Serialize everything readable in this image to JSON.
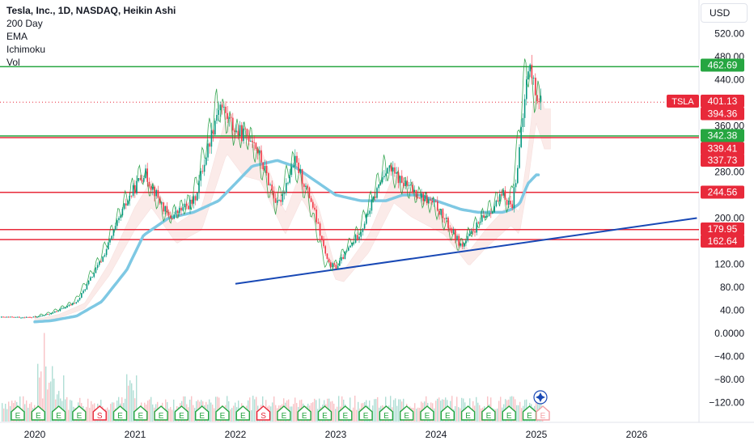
{
  "header": {
    "symbol_title": "Tesla, Inc., 1D, NASDAQ, Heikin Ashi",
    "indicators": [
      "200 Day",
      "EMA",
      "Ichimoku",
      "Vol"
    ],
    "currency": "USD"
  },
  "price_axis": {
    "ticks": [
      "520.00",
      "480.00",
      "440.00",
      "360.00",
      "280.00",
      "200.00",
      "120.00",
      "80.00",
      "40.00",
      "0.0000",
      "−40.00",
      "−80.00",
      "−120.00"
    ],
    "tick_values": [
      520,
      480,
      440,
      360,
      280,
      200,
      120,
      80,
      40,
      0,
      -40,
      -80,
      -120
    ]
  },
  "time_axis": {
    "labels": [
      "2020",
      "2021",
      "2022",
      "2023",
      "2024",
      "2025",
      "2026"
    ]
  },
  "price_labels": [
    {
      "text": "462.69",
      "value": 462.69,
      "kind": "green"
    },
    {
      "text": "401.13",
      "value": 401.13,
      "kind": "red",
      "symbol": "TSLA"
    },
    {
      "text": "394.36",
      "value": 394.36,
      "kind": "red"
    },
    {
      "text": "342.38",
      "value": 342.38,
      "kind": "green"
    },
    {
      "text": "339.41",
      "value": 339.41,
      "kind": "red"
    },
    {
      "text": "337.73",
      "value": 337.73,
      "kind": "red"
    },
    {
      "text": "244.56",
      "value": 244.56,
      "kind": "red"
    },
    {
      "text": "179.95",
      "value": 179.95,
      "kind": "red"
    },
    {
      "text": "162.64",
      "value": 162.64,
      "kind": "red"
    }
  ],
  "horizontal_lines": [
    {
      "value": 462.69,
      "color": "#26a641"
    },
    {
      "value": 342.38,
      "color": "#26a641"
    },
    {
      "value": 339.41,
      "color": "#e8293a"
    },
    {
      "value": 244.56,
      "color": "#e8293a"
    },
    {
      "value": 179.95,
      "color": "#e8293a"
    },
    {
      "value": 162.64,
      "color": "#e8293a"
    }
  ],
  "trendline": {
    "start": {
      "date": "2022.0",
      "value": 86
    },
    "end": {
      "date": "2026.6",
      "value": 200
    },
    "color": "#1848b5"
  },
  "last_price_line": {
    "value": 401.13,
    "color": "#e8293a"
  },
  "events": [
    "E",
    "E",
    "E",
    "E",
    "S",
    "E",
    "E",
    "E",
    "E",
    "E",
    "E",
    "E",
    "S",
    "E",
    "E",
    "E",
    "E",
    "E",
    "E",
    "E",
    "E",
    "E",
    "E",
    "E",
    "E",
    "E"
  ],
  "colors": {
    "up": "#089981",
    "down": "#f23645",
    "ma": "#7ec8e3",
    "trend": "#1848b5",
    "green_line": "#26a641",
    "red_line": "#e8293a"
  },
  "chart_data": {
    "type": "line",
    "title": "Tesla, Inc., 1D, NASDAQ, Heikin Ashi",
    "x": [
      "2020-01",
      "2020-03",
      "2020-06",
      "2020-09",
      "2020-12",
      "2021-02",
      "2021-05",
      "2021-08",
      "2021-11",
      "2022-01",
      "2022-03",
      "2022-06",
      "2022-08",
      "2022-10",
      "2022-12",
      "2023-01",
      "2023-04",
      "2023-07",
      "2023-09",
      "2023-11",
      "2024-01",
      "2024-04",
      "2024-06",
      "2024-09",
      "2024-10",
      "2024-11",
      "2024-12",
      "2025-01"
    ],
    "series": [
      {
        "values": [
          28,
          35,
          55,
          130,
          230,
          280,
          200,
          230,
          400,
          350,
          340,
          220,
          300,
          230,
          120,
          115,
          180,
          290,
          260,
          240,
          220,
          150,
          190,
          240,
          220,
          330,
          470,
          410
        ]
      },
      {
        "values": [
          20,
          22,
          30,
          55,
          110,
          170,
          200,
          210,
          230,
          260,
          290,
          300,
          290,
          270,
          250,
          240,
          230,
          230,
          240,
          240,
          230,
          215,
          210,
          210,
          215,
          225,
          260,
          275
        ]
      }
    ],
    "ylim": [
      -130,
      540
    ],
    "xlabel": "",
    "ylabel": ""
  }
}
